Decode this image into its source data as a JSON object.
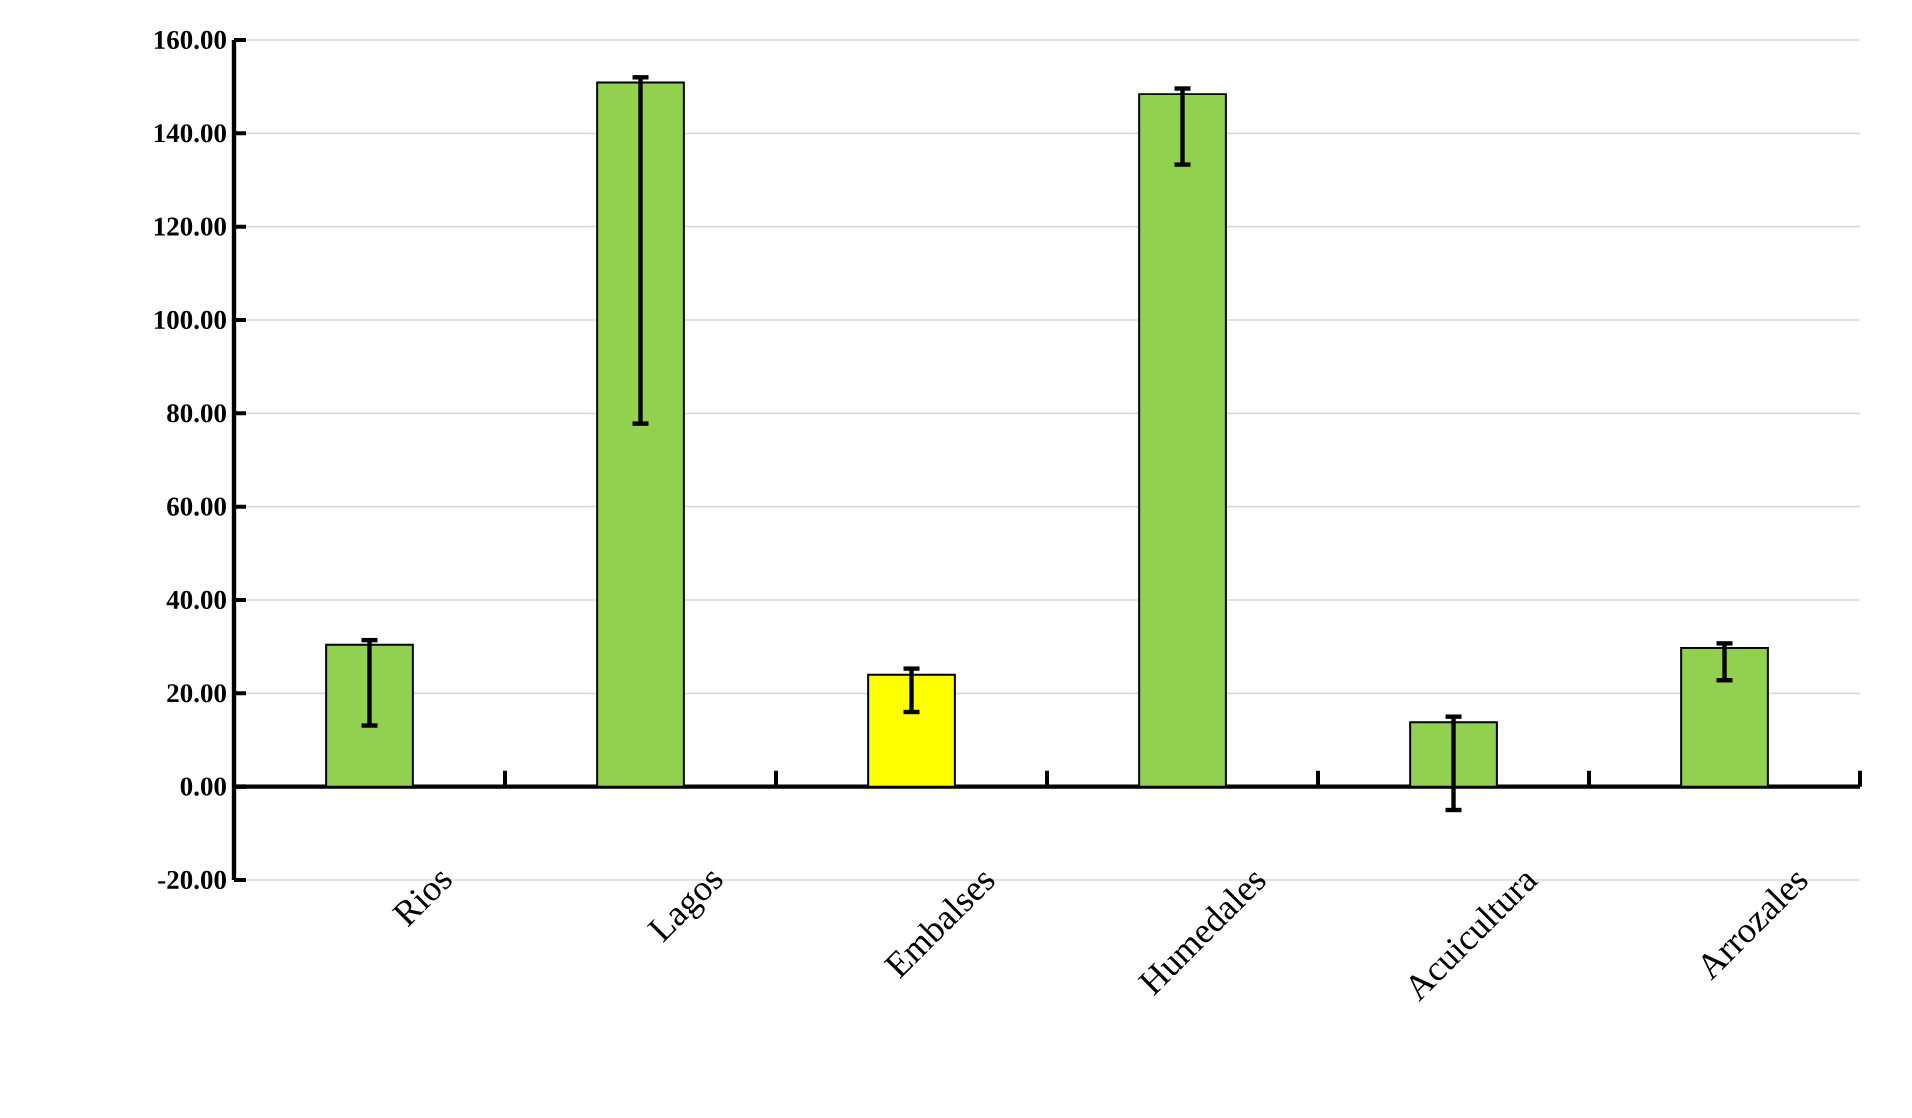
{
  "chart_data": {
    "type": "bar",
    "categories": [
      "Rios",
      "Lagos",
      "Embalses",
      "Humedales",
      "Acuicultura",
      "Arrozales"
    ],
    "values": [
      30.4,
      150.9,
      24.0,
      148.4,
      13.8,
      29.7
    ],
    "colors": [
      "#92d050",
      "#92d050",
      "#ffff00",
      "#92d050",
      "#92d050",
      "#92d050"
    ],
    "errors": [
      [
        13.1,
        31.4
      ],
      [
        77.8,
        152.0
      ],
      [
        16.0,
        25.3
      ],
      [
        133.3,
        149.6
      ],
      [
        -5.0,
        15.0
      ],
      [
        22.8,
        30.7
      ]
    ],
    "ylim": [
      -20,
      160
    ],
    "yticks": [
      {
        "value": -20,
        "label": "-20.00"
      },
      {
        "value": 0,
        "label": "0.00"
      },
      {
        "value": 20,
        "label": "20.00"
      },
      {
        "value": 40,
        "label": "40.00"
      },
      {
        "value": 60,
        "label": "60.00"
      },
      {
        "value": 80,
        "label": "80.00"
      },
      {
        "value": 100,
        "label": "100.00"
      },
      {
        "value": 120,
        "label": "120.00"
      },
      {
        "value": 140,
        "label": "140.00"
      },
      {
        "value": 160,
        "label": "160.00"
      }
    ],
    "grid": "y"
  }
}
